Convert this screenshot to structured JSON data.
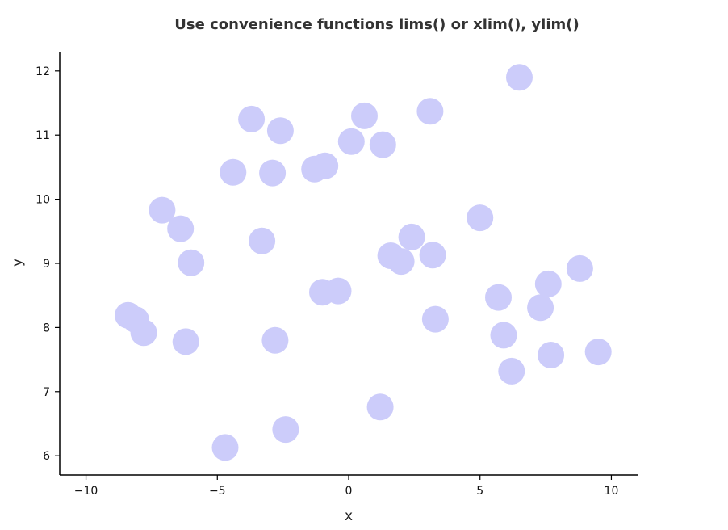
{
  "chart_data": {
    "type": "scatter",
    "title": "Use convenience functions lims() or xlim(), ylim()",
    "xlabel": "x",
    "ylabel": "y",
    "xlim": [
      -11,
      11
    ],
    "ylim": [
      5.7,
      12.3
    ],
    "xticks": [
      -10,
      -5,
      0,
      5,
      10
    ],
    "yticks": [
      6,
      7,
      8,
      9,
      10,
      11,
      12
    ],
    "xtick_labels": [
      "−10",
      "−5",
      "0",
      "5",
      "10"
    ],
    "ytick_labels": [
      "6",
      "7",
      "8",
      "9",
      "10",
      "11",
      "12"
    ],
    "grid": false,
    "point_color": "#ccccfa",
    "points": [
      {
        "x": 6.5,
        "y": 11.9
      },
      {
        "x": 3.1,
        "y": 11.37
      },
      {
        "x": 0.6,
        "y": 11.3
      },
      {
        "x": -3.7,
        "y": 11.25
      },
      {
        "x": -2.6,
        "y": 11.07
      },
      {
        "x": 0.1,
        "y": 10.9
      },
      {
        "x": 1.3,
        "y": 10.85
      },
      {
        "x": -4.4,
        "y": 10.42
      },
      {
        "x": -2.9,
        "y": 10.41
      },
      {
        "x": -1.3,
        "y": 10.47
      },
      {
        "x": -0.9,
        "y": 10.52
      },
      {
        "x": -7.1,
        "y": 9.83
      },
      {
        "x": -6.4,
        "y": 9.54
      },
      {
        "x": -3.3,
        "y": 9.35
      },
      {
        "x": -6.0,
        "y": 9.01
      },
      {
        "x": 5.0,
        "y": 9.71
      },
      {
        "x": 2.4,
        "y": 9.41
      },
      {
        "x": 1.6,
        "y": 9.12
      },
      {
        "x": 2.0,
        "y": 9.03
      },
      {
        "x": 3.2,
        "y": 9.13
      },
      {
        "x": 8.8,
        "y": 8.92
      },
      {
        "x": 7.6,
        "y": 8.68
      },
      {
        "x": -1.0,
        "y": 8.55
      },
      {
        "x": -0.4,
        "y": 8.57
      },
      {
        "x": 5.7,
        "y": 8.47
      },
      {
        "x": 7.3,
        "y": 8.31
      },
      {
        "x": -8.4,
        "y": 8.19
      },
      {
        "x": -8.1,
        "y": 8.12
      },
      {
        "x": -7.8,
        "y": 7.92
      },
      {
        "x": 3.3,
        "y": 8.13
      },
      {
        "x": 5.9,
        "y": 7.88
      },
      {
        "x": -6.2,
        "y": 7.78
      },
      {
        "x": -2.8,
        "y": 7.8
      },
      {
        "x": 7.7,
        "y": 7.57
      },
      {
        "x": 9.5,
        "y": 7.62
      },
      {
        "x": 6.2,
        "y": 7.32
      },
      {
        "x": 1.2,
        "y": 6.76
      },
      {
        "x": -2.4,
        "y": 6.41
      },
      {
        "x": -4.7,
        "y": 6.13
      }
    ]
  }
}
